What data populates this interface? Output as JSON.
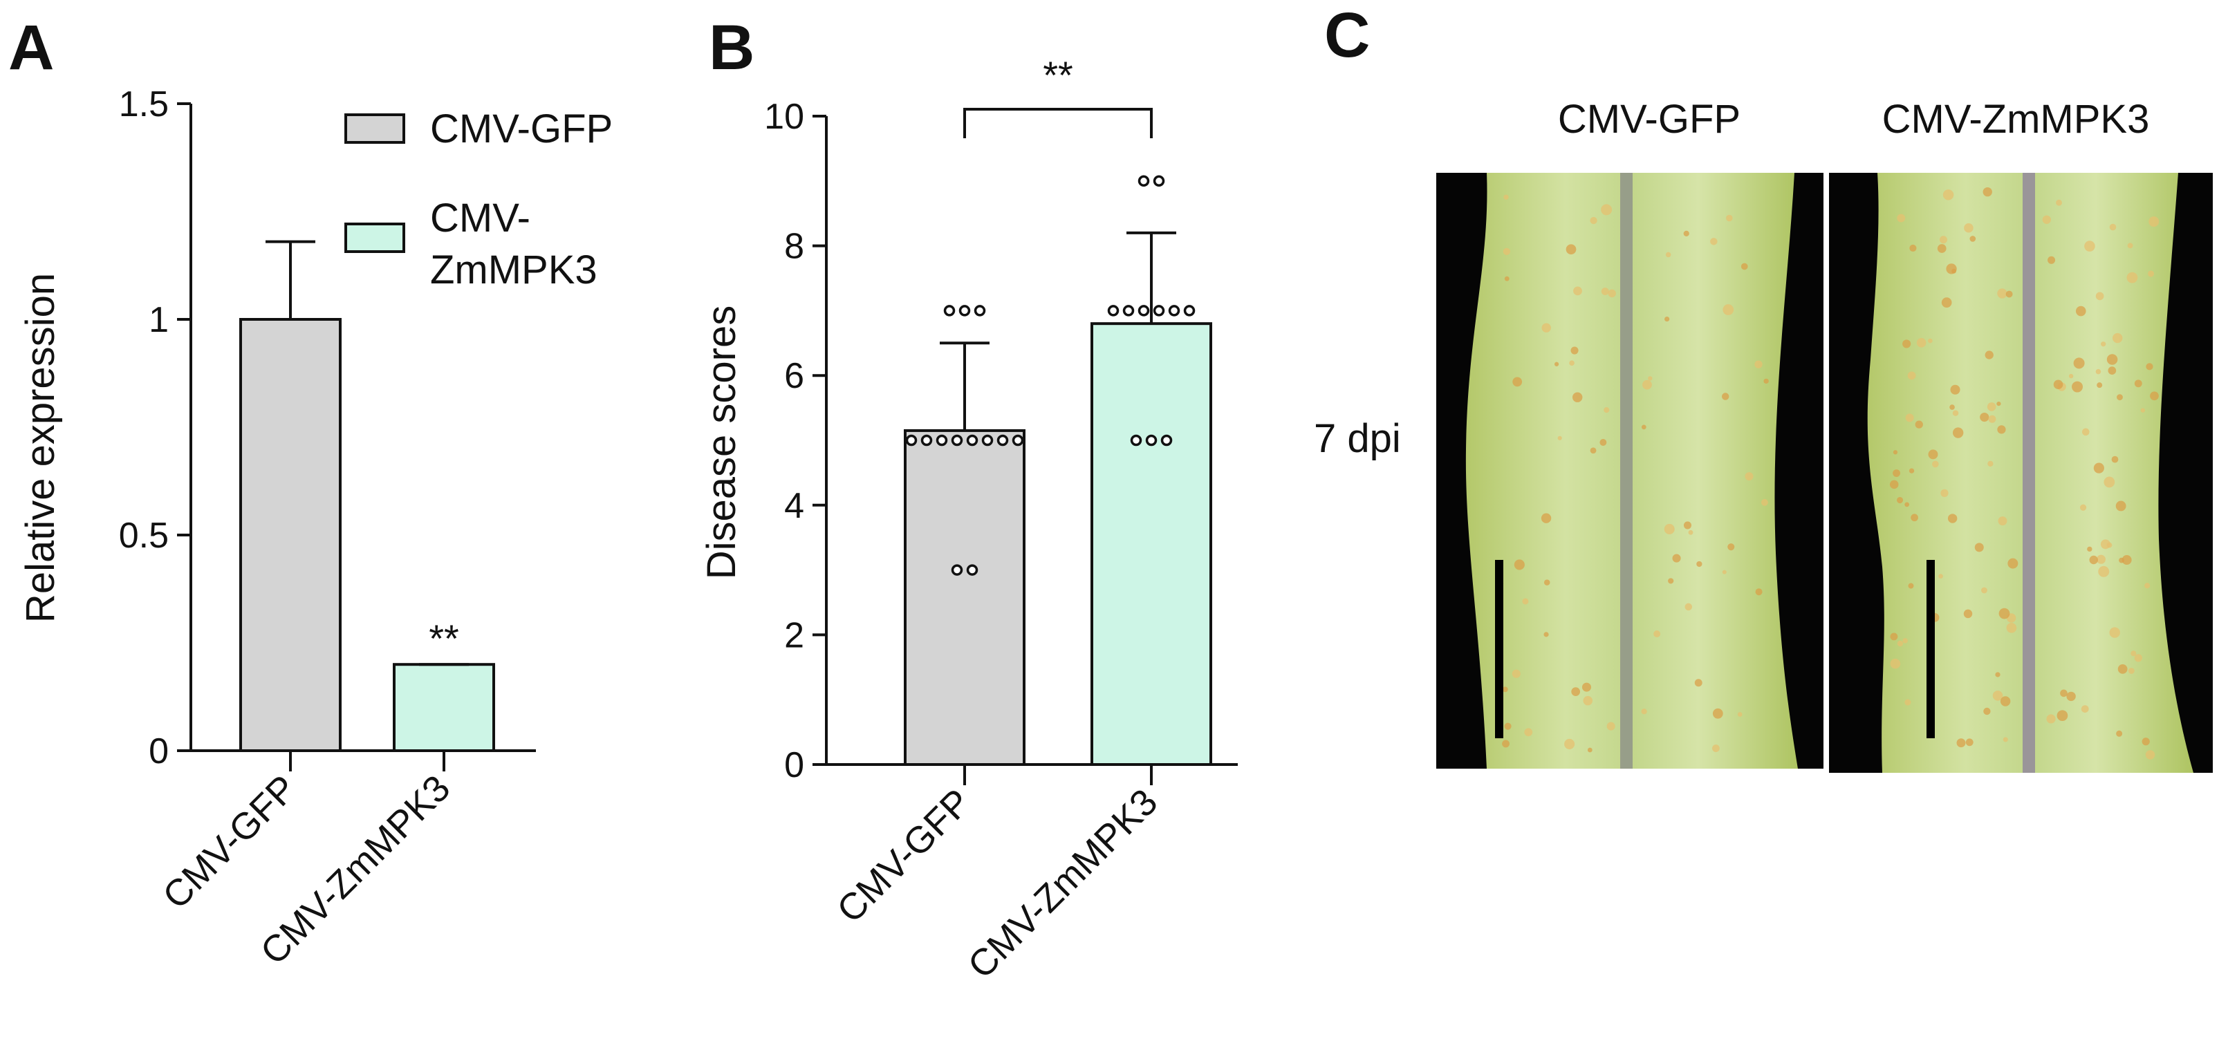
{
  "colors": {
    "gfp": "#d4d4d4",
    "zm": "#cdf5e6",
    "axis": "#111111"
  },
  "panels": {
    "a": "A",
    "b": "B",
    "c": "C"
  },
  "chart_data": [
    {
      "type": "bar",
      "categories": [
        "CMV-GFP",
        "CMV-ZmMPK3"
      ],
      "values": [
        1.0,
        0.2
      ],
      "errors": [
        0.18,
        0.0
      ],
      "ylabel": "Relative expression",
      "ylim": [
        0,
        1.5
      ],
      "yticks": [
        0,
        0.5,
        1,
        1.5
      ],
      "ytick_labels": [
        "0",
        "0.5",
        "1",
        "1.5"
      ],
      "significance": [
        {
          "category": "CMV-ZmMPK3",
          "label": "**"
        }
      ],
      "legend": {
        "placement": "top-right",
        "entries": [
          {
            "label_lines": [
              "CMV-GFP"
            ],
            "color": "#d4d4d4"
          },
          {
            "label_lines": [
              "CMV-",
              "ZmMPK3"
            ],
            "color": "#cdf5e6"
          }
        ]
      }
    },
    {
      "type": "bar",
      "categories": [
        "CMV-GFP",
        "CMV-ZmMPK3"
      ],
      "values": [
        5.15,
        6.8
      ],
      "errors": [
        1.35,
        1.4
      ],
      "ylabel": "Disease scores",
      "ylim": [
        0,
        10
      ],
      "yticks": [
        0,
        2,
        4,
        6,
        8,
        10
      ],
      "ytick_labels": [
        "0",
        "2",
        "4",
        "6",
        "8",
        "10"
      ],
      "bracket_label": "**",
      "points": [
        [
          7,
          7,
          7,
          5,
          5,
          5,
          5,
          5,
          5,
          5,
          5,
          3,
          3
        ],
        [
          9,
          9,
          7,
          7,
          7,
          7,
          7,
          7,
          5,
          5,
          5
        ]
      ]
    }
  ],
  "photo": {
    "columns": [
      "CMV-GFP",
      "CMV-ZmMPK3"
    ],
    "row_label": "7 dpi"
  }
}
